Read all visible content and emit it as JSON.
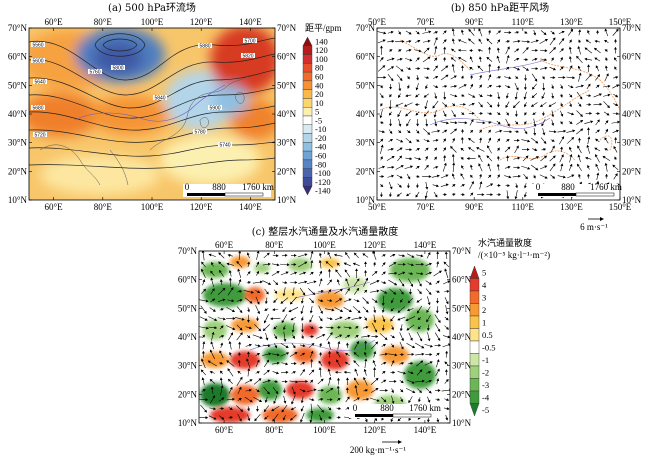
{
  "chart_data": [
    {
      "panel": "a",
      "type": "heatmap",
      "title": "(a) 500 hPa环流场",
      "x_ticks": [
        "60°E",
        "80°E",
        "100°E",
        "120°E",
        "140°E"
      ],
      "y_ticks": [
        "70°N",
        "60°N",
        "50°N",
        "40°N",
        "30°N",
        "20°N",
        "10°N"
      ],
      "xlim": [
        50,
        150
      ],
      "ylim": [
        10,
        70
      ],
      "colorbar": {
        "label": "距平/gpm",
        "levels": [
          "140",
          "120",
          "100",
          "80",
          "60",
          "40",
          "20",
          "10",
          "5",
          "-5",
          "-10",
          "-20",
          "-40",
          "-60",
          "-80",
          "-100",
          "-120",
          "-140"
        ],
        "colors": [
          "#8c0c12",
          "#b71c1c",
          "#d32f2f",
          "#e84f2a",
          "#f26b2b",
          "#f79234",
          "#fbb84a",
          "#fdd56d",
          "#fcf0b0",
          "#ffffff",
          "#d7eaf2",
          "#b3d5ea",
          "#8ec0e2",
          "#6fa3d6",
          "#5684c6",
          "#4a64b0",
          "#3f4a98",
          "#352f7e"
        ]
      },
      "contour_labels": [
        "5560",
        "5600",
        "5640",
        "5680",
        "5720",
        "5760",
        "5800",
        "5840",
        "5880",
        "5700",
        "5820",
        "5900",
        "5780",
        "5740"
      ],
      "scale_bar": {
        "values": [
          "0",
          "880",
          "1760 km"
        ]
      }
    },
    {
      "panel": "b",
      "type": "scatter",
      "title": "(b) 850 hPa距平风场",
      "x_ticks": [
        "50°E",
        "70°E",
        "90°E",
        "110°E",
        "130°E",
        "150°E"
      ],
      "y_ticks": [
        "70°N",
        "60°N",
        "50°N",
        "40°N",
        "30°N",
        "20°N",
        "10°N"
      ],
      "xlim": [
        50,
        150
      ],
      "ylim": [
        10,
        70
      ],
      "reference_vector": "6 m·s⁻¹",
      "scale_bar": {
        "values": [
          "0",
          "880",
          "1760 km"
        ]
      }
    },
    {
      "panel": "c",
      "type": "heatmap",
      "title": "(c) 整层水汽通量及水汽通量散度",
      "x_ticks": [
        "60°E",
        "80°E",
        "100°E",
        "120°E",
        "140°E"
      ],
      "y_ticks": [
        "70°N",
        "60°N",
        "50°N",
        "40°N",
        "30°N",
        "20°N",
        "10°N"
      ],
      "xlim": [
        50,
        150
      ],
      "ylim": [
        10,
        70
      ],
      "colorbar": {
        "label_line1": "水汽通量散度",
        "label_line2": "/(×10⁻⁵ kg·l⁻¹·m⁻²)",
        "levels": [
          "5",
          "4",
          "3",
          "2",
          "1",
          "0.5",
          "-0.5",
          "-1",
          "-2",
          "-3",
          "-4",
          "-5"
        ],
        "colors": [
          "#b71c1c",
          "#e53a2c",
          "#f26b2b",
          "#f79a34",
          "#fbc34a",
          "#fde38a",
          "#ffffff",
          "#cde6a8",
          "#9fd07b",
          "#6cb755",
          "#3f9b3c",
          "#1f7a2b"
        ]
      },
      "reference_vector": "200 kg·m⁻¹·s⁻¹",
      "scale_bar": {
        "values": [
          "0",
          "880",
          "1760 km"
        ]
      }
    }
  ]
}
